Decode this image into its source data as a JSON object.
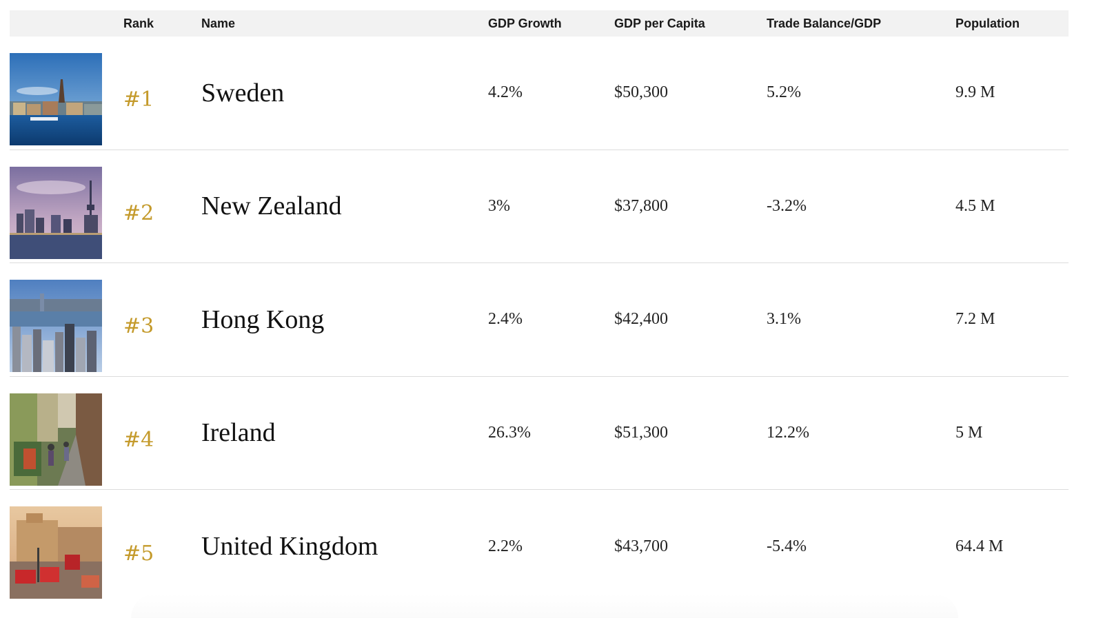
{
  "columns": {
    "rank": "Rank",
    "name": "Name",
    "gdp_growth": "GDP Growth",
    "gdp_per_capita": "GDP per Capita",
    "trade_balance": "Trade Balance/GDP",
    "population": "Population"
  },
  "rows": [
    {
      "rank": "#1",
      "name": "Sweden",
      "gdp_growth": "4.2%",
      "gdp_per_capita": "$50,300",
      "trade_balance": "5.2%",
      "population": "9.9 M"
    },
    {
      "rank": "#2",
      "name": "New Zealand",
      "gdp_growth": "3%",
      "gdp_per_capita": "$37,800",
      "trade_balance": "-3.2%",
      "population": "4.5 M"
    },
    {
      "rank": "#3",
      "name": "Hong Kong",
      "gdp_growth": "2.4%",
      "gdp_per_capita": "$42,400",
      "trade_balance": "3.1%",
      "population": "7.2 M"
    },
    {
      "rank": "#4",
      "name": "Ireland",
      "gdp_growth": "26.3%",
      "gdp_per_capita": "$51,300",
      "trade_balance": "12.2%",
      "population": "5 M"
    },
    {
      "rank": "#5",
      "name": "United Kingdom",
      "gdp_growth": "2.2%",
      "gdp_per_capita": "$43,700",
      "trade_balance": "-5.4%",
      "population": "64.4 M"
    }
  ],
  "colors": {
    "rank_gold": "#c49a2b",
    "header_bg": "#f2f2f2"
  }
}
